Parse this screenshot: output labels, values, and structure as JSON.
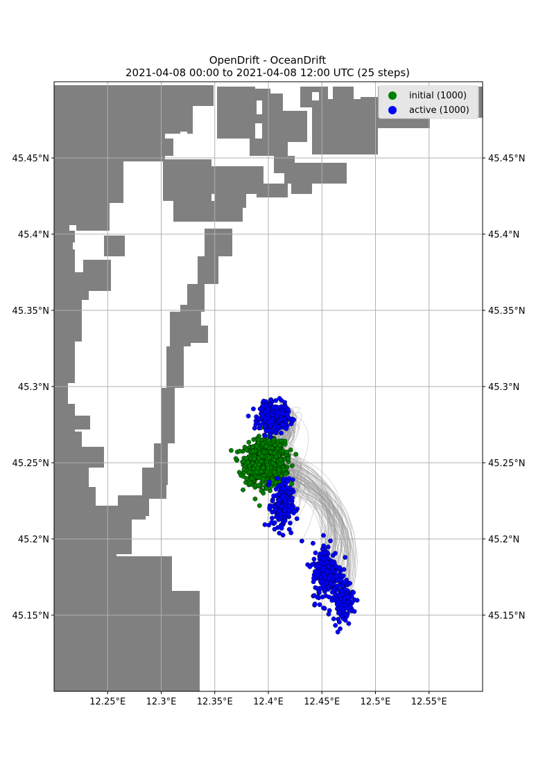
{
  "chart_data": {
    "type": "scatter",
    "title": "OpenDrift - OceanDrift",
    "subtitle": "2021-04-08 00:00 to 2021-04-08 12:00 UTC (25 steps)",
    "x_ticks": [
      "12.25°E",
      "12.3°E",
      "12.35°E",
      "12.4°E",
      "12.45°E",
      "12.5°E",
      "12.55°E"
    ],
    "x_tick_values": [
      12.25,
      12.3,
      12.35,
      12.4,
      12.45,
      12.5,
      12.55
    ],
    "y_ticks": [
      "45.15°N",
      "45.2°N",
      "45.25°N",
      "45.3°N",
      "45.35°N",
      "45.4°N",
      "45.45°N"
    ],
    "y_tick_values": [
      45.15,
      45.2,
      45.25,
      45.3,
      45.35,
      45.4,
      45.45
    ],
    "xlim": [
      12.2,
      12.6
    ],
    "ylim": [
      45.1,
      45.5
    ],
    "grid": true,
    "legend_position": "top-right",
    "land_color": "#808080",
    "trajectory_color": "#999999",
    "series": [
      {
        "name": "initial (1000)",
        "color": "#008000",
        "count": 1000,
        "center": [
          12.397,
          45.25
        ],
        "spread": [
          0.013,
          0.01
        ]
      },
      {
        "name": "active (1000)",
        "color": "#0000ff",
        "count": 1000,
        "clusters": [
          {
            "center": [
              12.405,
              45.28
            ],
            "spread": [
              0.009,
              0.006
            ],
            "share": 0.45
          },
          {
            "center": [
              12.413,
              45.222
            ],
            "spread": [
              0.007,
              0.012
            ],
            "share": 0.2
          },
          {
            "center": [
              12.455,
              45.178
            ],
            "spread": [
              0.01,
              0.014
            ],
            "share": 0.23
          },
          {
            "center": [
              12.47,
              45.16
            ],
            "spread": [
              0.007,
              0.01
            ],
            "share": 0.12
          }
        ]
      }
    ]
  }
}
